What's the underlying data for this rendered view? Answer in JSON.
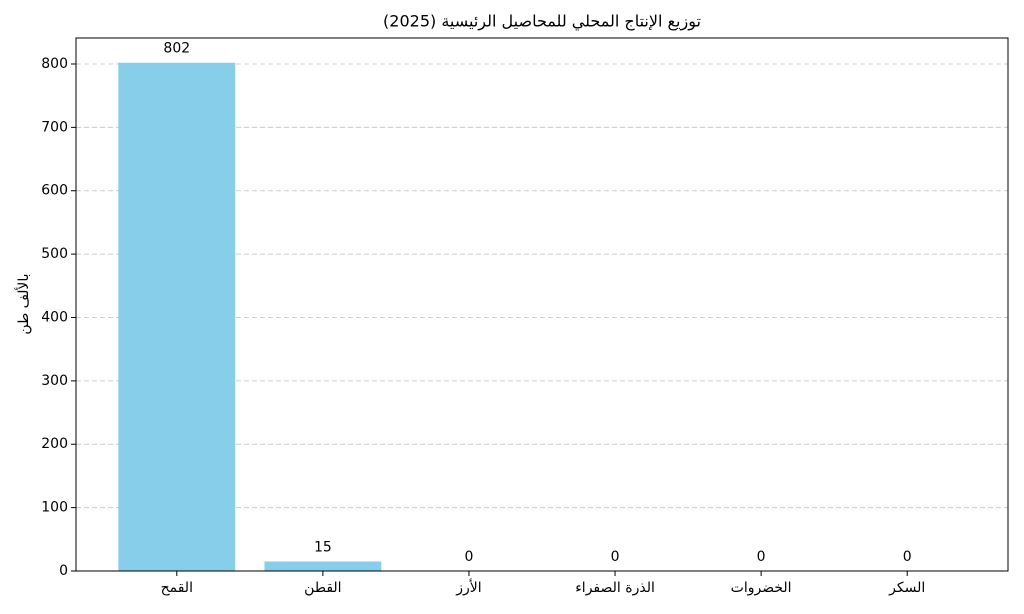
{
  "chart_data": {
    "type": "bar",
    "title": "توزيع الإنتاج المحلي للمحاصيل الرئيسية (2025)",
    "y_label": "بالألف طن",
    "categories": [
      "القمح",
      "القطن",
      "الأرز",
      "الذرة الصفراء",
      "الخضروات",
      "السكر"
    ],
    "values": [
      802,
      15,
      0,
      0,
      0,
      0
    ],
    "color": "#87ceeb",
    "ylim": [
      0,
      841
    ],
    "yticks": [
      0,
      100,
      200,
      300,
      400,
      500,
      600,
      700,
      800
    ],
    "grid": true
  }
}
